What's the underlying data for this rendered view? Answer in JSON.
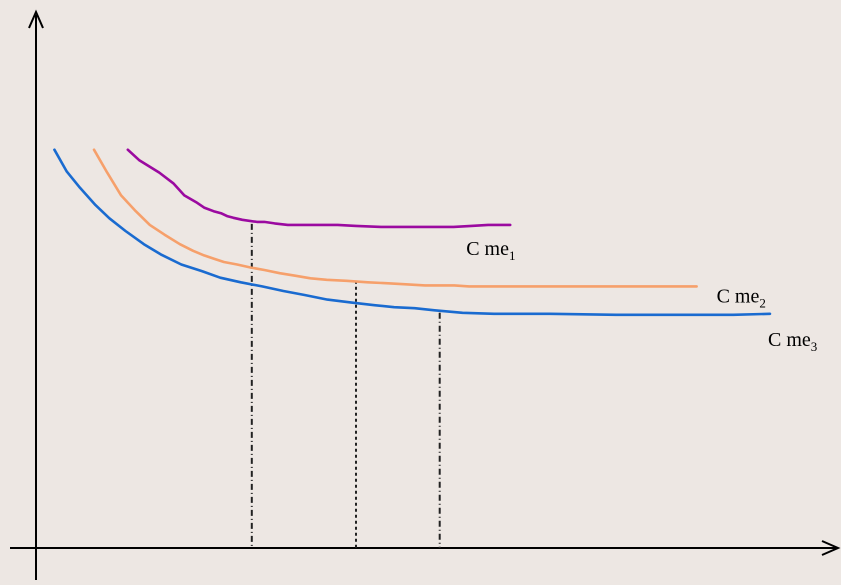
{
  "chart_data": {
    "type": "line",
    "title": "",
    "xlabel": "",
    "ylabel": "",
    "xlim": [
      0,
      100
    ],
    "ylim": [
      0,
      100
    ],
    "grid": false,
    "axes_ticks": false,
    "series": [
      {
        "label_base": "C me",
        "label_sub": "1",
        "color": "#9b0aa0",
        "x": [
          12.5,
          14.1,
          16.8,
          18.7,
          20.2,
          21.8,
          22.9,
          24.2,
          25.2,
          26.1,
          26.9,
          28.1,
          30.1,
          31.1,
          32.5,
          34.3,
          36.6,
          38.8,
          41.1,
          43.6,
          47.0,
          50.1,
          52.0,
          54.6,
          56.9,
          59.3,
          61.6,
          63.3,
          64.6
        ],
        "y": [
          78.4,
          76.3,
          73.9,
          71.8,
          69.4,
          68.1,
          67.0,
          66.3,
          65.9,
          65.3,
          65.0,
          64.6,
          64.2,
          64.2,
          63.9,
          63.6,
          63.6,
          63.6,
          63.6,
          63.4,
          63.2,
          63.2,
          63.2,
          63.2,
          63.2,
          63.4,
          63.6,
          63.6,
          63.6
        ]
      },
      {
        "label_base": "C me",
        "label_sub": "2",
        "color": "#f6a06b",
        "x": [
          7.9,
          9.7,
          11.6,
          13.6,
          15.5,
          17.5,
          19.6,
          21.4,
          22.9,
          24.3,
          25.6,
          27.4,
          29.3,
          31.2,
          33.2,
          35.3,
          37.4,
          39.6,
          42.3,
          45.2,
          48.0,
          50.4,
          53.0,
          54.9,
          57.0,
          59.0,
          63.2,
          70.0,
          80.0,
          90.0
        ],
        "y": [
          78.4,
          73.9,
          69.4,
          66.3,
          63.6,
          61.7,
          59.8,
          58.5,
          57.6,
          56.9,
          56.3,
          55.8,
          55.2,
          54.7,
          54.1,
          53.6,
          53.1,
          52.8,
          52.6,
          52.3,
          52.1,
          51.9,
          51.7,
          51.7,
          51.7,
          51.5,
          51.5,
          51.5,
          51.5,
          51.5
        ]
      },
      {
        "label_base": "C me",
        "label_sub": "3",
        "color": "#1a6bd0",
        "x": [
          2.5,
          4.2,
          6.0,
          8.1,
          10.0,
          12.2,
          14.7,
          17.0,
          19.8,
          22.6,
          25.1,
          27.9,
          30.8,
          33.7,
          36.6,
          39.7,
          43.0,
          46.1,
          48.8,
          51.6,
          54.3,
          58.1,
          62.4,
          70.0,
          79.0,
          88.0,
          95.0,
          100.0
        ],
        "y": [
          78.4,
          74.1,
          70.9,
          67.5,
          64.9,
          62.4,
          59.8,
          57.8,
          55.8,
          54.5,
          53.2,
          52.3,
          51.5,
          50.6,
          49.8,
          48.9,
          48.3,
          47.8,
          47.4,
          47.2,
          46.8,
          46.3,
          46.1,
          46.1,
          45.9,
          45.9,
          45.9,
          46.1
        ]
      }
    ],
    "vertical_guides": [
      {
        "x": 29.4,
        "y_top": 63.8,
        "style": "heavy-dashed"
      },
      {
        "x": 43.6,
        "y_top": 52.6,
        "style": "light-dashed"
      },
      {
        "x": 55.0,
        "y_top": 46.3,
        "style": "heavy-dashed"
      }
    ],
    "annotations": [
      {
        "series_index": 0,
        "text_base": "C me",
        "text_sub": "1"
      },
      {
        "series_index": 1,
        "text_base": "C me",
        "text_sub": "2"
      },
      {
        "series_index": 2,
        "text_base": "C me",
        "text_sub": "3"
      }
    ]
  }
}
